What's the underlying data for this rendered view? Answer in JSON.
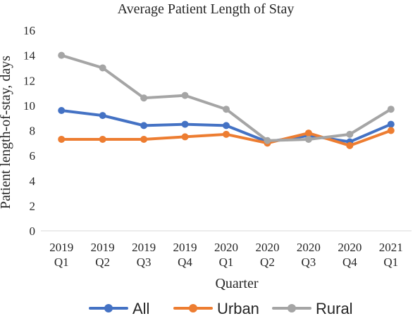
{
  "chart_data": {
    "type": "line",
    "title": "Average Patient Length of Stay",
    "xlabel": "Quarter",
    "ylabel": "Patient length-of-stay, days",
    "categories": [
      [
        "2019",
        "Q1"
      ],
      [
        "2019",
        "Q2"
      ],
      [
        "2019",
        "Q3"
      ],
      [
        "2019",
        "Q4"
      ],
      [
        "2020",
        "Q1"
      ],
      [
        "2020",
        "Q2"
      ],
      [
        "2020",
        "Q3"
      ],
      [
        "2020",
        "Q4"
      ],
      [
        "2021",
        "Q1"
      ]
    ],
    "ylim": [
      0,
      16
    ],
    "yticks": [
      "0",
      "2",
      "4",
      "6",
      "8",
      "10",
      "12",
      "14",
      "16"
    ],
    "grid": false,
    "legend_position": "bottom",
    "series": [
      {
        "name": "All",
        "color": "#4472C4",
        "values": [
          9.6,
          9.2,
          8.4,
          8.5,
          8.4,
          7.1,
          7.6,
          7.1,
          8.5
        ]
      },
      {
        "name": "Urban",
        "color": "#ED7D31",
        "values": [
          7.3,
          7.3,
          7.3,
          7.5,
          7.7,
          7.0,
          7.8,
          6.8,
          8.0
        ]
      },
      {
        "name": "Rural",
        "color": "#A5A5A5",
        "values": [
          14.0,
          13.0,
          10.6,
          10.8,
          9.7,
          7.2,
          7.3,
          7.7,
          9.7
        ]
      }
    ]
  }
}
